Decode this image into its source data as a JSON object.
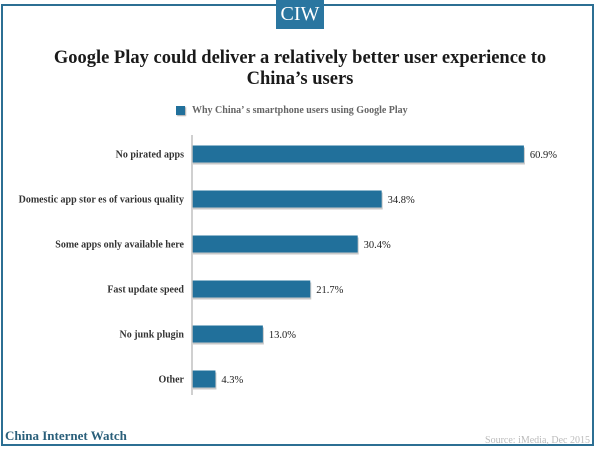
{
  "brand": {
    "logo_text": "CIW",
    "footer_name": "China Internet Watch"
  },
  "source": "Source: iMedia,  Dec 2015",
  "colors": {
    "bar": "#21709b",
    "frame": "#2c6f93",
    "logo_bg": "#2a76a0",
    "brand_text": "#2a5f7a"
  },
  "chart_data": {
    "type": "bar",
    "orientation": "horizontal",
    "title": "Google Play could deliver a relatively better user experience to China’s users",
    "legend": [
      "Why China’ s smartphone  users using Google Play"
    ],
    "legend_placement": "top",
    "categories": [
      "No pirated apps",
      "Domestic app stor es of various quality",
      "Some apps only available here",
      "Fast update speed",
      "No junk plugin",
      "Other"
    ],
    "series": [
      {
        "name": "Why China’ s smartphone  users using Google Play",
        "values": [
          60.9,
          34.8,
          30.4,
          21.7,
          13.0,
          4.3
        ]
      }
    ],
    "value_labels": [
      "60.9%",
      "34.8%",
      "30.4%",
      "21.7%",
      "13.0%",
      "4.3%"
    ],
    "unit": "%",
    "xlabel": "",
    "ylabel": "",
    "xlim": [
      0,
      62
    ],
    "grid": false
  }
}
